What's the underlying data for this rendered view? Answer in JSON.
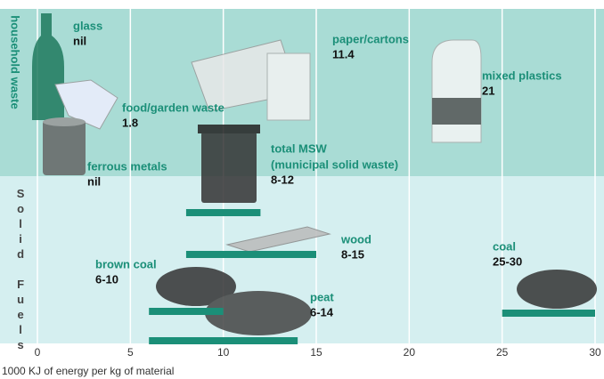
{
  "chart_data": {
    "type": "range",
    "groups": [
      "household waste",
      "Solid Fuels"
    ],
    "xlabel": "1000 KJ of energy per kg of material",
    "xlim": [
      0,
      30
    ],
    "xticks": [
      0,
      5,
      10,
      15,
      20,
      25,
      30
    ],
    "grid": true,
    "color": "#1b8f78",
    "items": [
      {
        "group": 0,
        "name": [
          "glass"
        ],
        "value": "nil"
      },
      {
        "group": 0,
        "name": [
          "food/garden waste"
        ],
        "value": 1.8
      },
      {
        "group": 0,
        "name": [
          "paper/cartons"
        ],
        "value": 11.4
      },
      {
        "group": 0,
        "name": [
          "mixed plastics"
        ],
        "value": 21
      },
      {
        "group": 0,
        "name": [
          "ferrous metals"
        ],
        "value": "nil"
      },
      {
        "group": 0,
        "name": [
          "total MSW",
          "(municipal solid waste)"
        ],
        "range": [
          8,
          12
        ],
        "range_label": "8-12"
      },
      {
        "group": 1,
        "name": [
          "wood"
        ],
        "range": [
          8,
          15
        ],
        "range_label": "8-15"
      },
      {
        "group": 1,
        "name": [
          "brown coal"
        ],
        "range": [
          6,
          10
        ],
        "range_label": "6-10"
      },
      {
        "group": 1,
        "name": [
          "peat"
        ],
        "range": [
          6,
          14
        ],
        "range_label": "6-14"
      },
      {
        "group": 1,
        "name": [
          "coal"
        ],
        "range": [
          25,
          30
        ],
        "range_label": "25-30"
      }
    ]
  }
}
